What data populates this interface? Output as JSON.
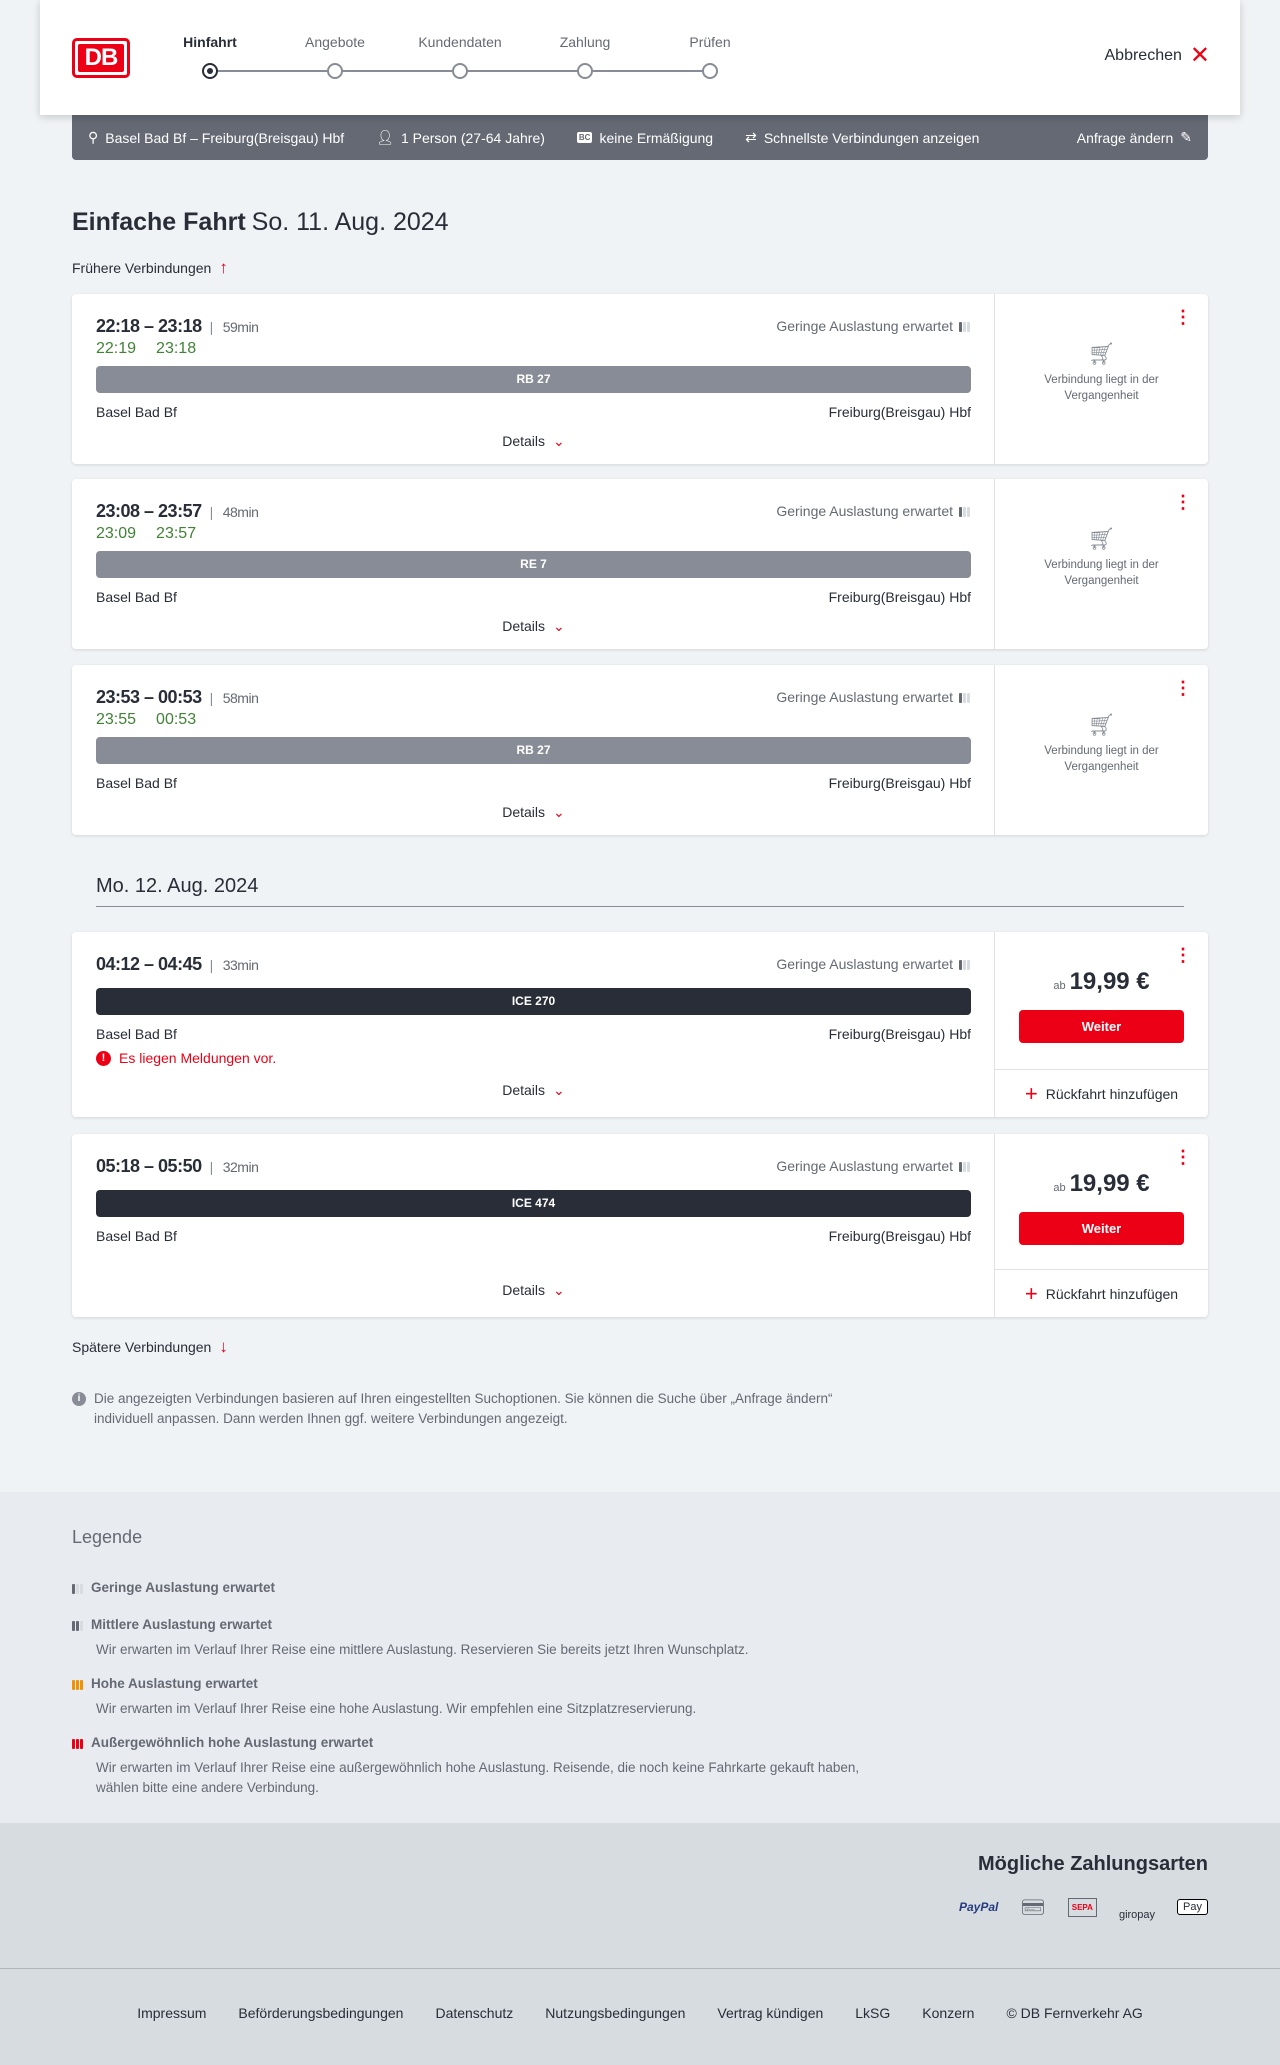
{
  "header": {
    "logo": "DB",
    "steps": [
      "Hinfahrt",
      "Angebote",
      "Kundendaten",
      "Zahlung",
      "Prüfen"
    ],
    "active_step": 0,
    "cancel": "Abbrechen"
  },
  "request": {
    "route": "Basel Bad Bf – Freiburg(Breisgau) Hbf",
    "travellers": "1 Person (27-64 Jahre)",
    "bahncard_badge": "BC",
    "discount": "keine Ermäßigung",
    "fastest": "Schnellste Verbindungen anzeigen",
    "edit": "Anfrage ändern"
  },
  "page": {
    "title": "Einfache Fahrt",
    "date": "So. 11. Aug. 2024",
    "earlier": "Frühere Verbindungen",
    "second_date": "Mo. 12. Aug. 2024",
    "later": "Spätere Verbindungen",
    "info": "Die angezeigten Verbindungen basieren auf Ihren eingestellten Suchoptionen. Sie können die Suche über „Anfrage ändern“ individuell anpassen. Dann werden Ihnen ggf. weitere Verbindungen angezeigt."
  },
  "colors": {
    "accent": "#ec0016",
    "realtime": "#408335",
    "regional": "#878c96",
    "longdistance": "#282d37"
  },
  "connections": [
    {
      "times": "22:18 – 23:18",
      "duration": "59min",
      "rt_dep": "22:19",
      "rt_arr": "23:18",
      "load": "Geringe Auslastung erwartet",
      "train": "RB 27",
      "from": "Basel Bad Bf",
      "to": "Freiburg(Breisgau) Hbf",
      "details": "Details",
      "status": "Verbindung liegt in der Vergangenheit"
    },
    {
      "times": "23:08 – 23:57",
      "duration": "48min",
      "rt_dep": "23:09",
      "rt_arr": "23:57",
      "load": "Geringe Auslastung erwartet",
      "train": "RE 7",
      "from": "Basel Bad Bf",
      "to": "Freiburg(Breisgau) Hbf",
      "details": "Details",
      "status": "Verbindung liegt in der Vergangenheit"
    },
    {
      "times": "23:53 – 00:53",
      "duration": "58min",
      "rt_dep": "23:55",
      "rt_arr": "00:53",
      "load": "Geringe Auslastung erwartet",
      "train": "RB 27",
      "from": "Basel Bad Bf",
      "to": "Freiburg(Breisgau) Hbf",
      "details": "Details",
      "status": "Verbindung liegt in der Vergangenheit"
    },
    {
      "times": "04:12 – 04:45",
      "duration": "33min",
      "load": "Geringe Auslastung erwartet",
      "train": "ICE 270",
      "from": "Basel Bad Bf",
      "to": "Freiburg(Breisgau) Hbf",
      "message": "Es liegen Meldungen vor.",
      "details": "Details",
      "price_prefix": "ab",
      "price": "19,99 €",
      "button": "Weiter",
      "return": "Rückfahrt hinzufügen"
    },
    {
      "times": "05:18 – 05:50",
      "duration": "32min",
      "load": "Geringe Auslastung erwartet",
      "train": "ICE 474",
      "from": "Basel Bad Bf",
      "to": "Freiburg(Breisgau) Hbf",
      "details": "Details",
      "price_prefix": "ab",
      "price": "19,99 €",
      "button": "Weiter",
      "return": "Rückfahrt hinzufügen"
    }
  ],
  "legend": {
    "title": "Legende",
    "items": [
      {
        "title": "Geringe Auslastung erwartet",
        "text": ""
      },
      {
        "title": "Mittlere Auslastung erwartet",
        "text": "Wir erwarten im Verlauf Ihrer Reise eine mittlere Auslastung. Reservieren Sie bereits jetzt Ihren Wunschplatz."
      },
      {
        "title": "Hohe Auslastung erwartet",
        "text": "Wir erwarten im Verlauf Ihrer Reise eine hohe Auslastung. Wir empfehlen eine Sitzplatzreservierung."
      },
      {
        "title": "Außergewöhnlich hohe Auslastung erwartet",
        "text": "Wir erwarten im Verlauf Ihrer Reise eine außergewöhnlich hohe Auslastung. Reisende, die noch keine Fahrkarte gekauft haben, wählen bitte eine andere Verbindung."
      }
    ]
  },
  "payment": {
    "title": "Mögliche Zahlungsarten",
    "methods": [
      "PayPal",
      "SEPA",
      "giropay",
      "Pay"
    ]
  },
  "footer": [
    "Impressum",
    "Beförderungsbedingungen",
    "Datenschutz",
    "Nutzungsbedingungen",
    "Vertrag kündigen",
    "LkSG",
    "Konzern",
    "© DB Fernverkehr AG"
  ]
}
